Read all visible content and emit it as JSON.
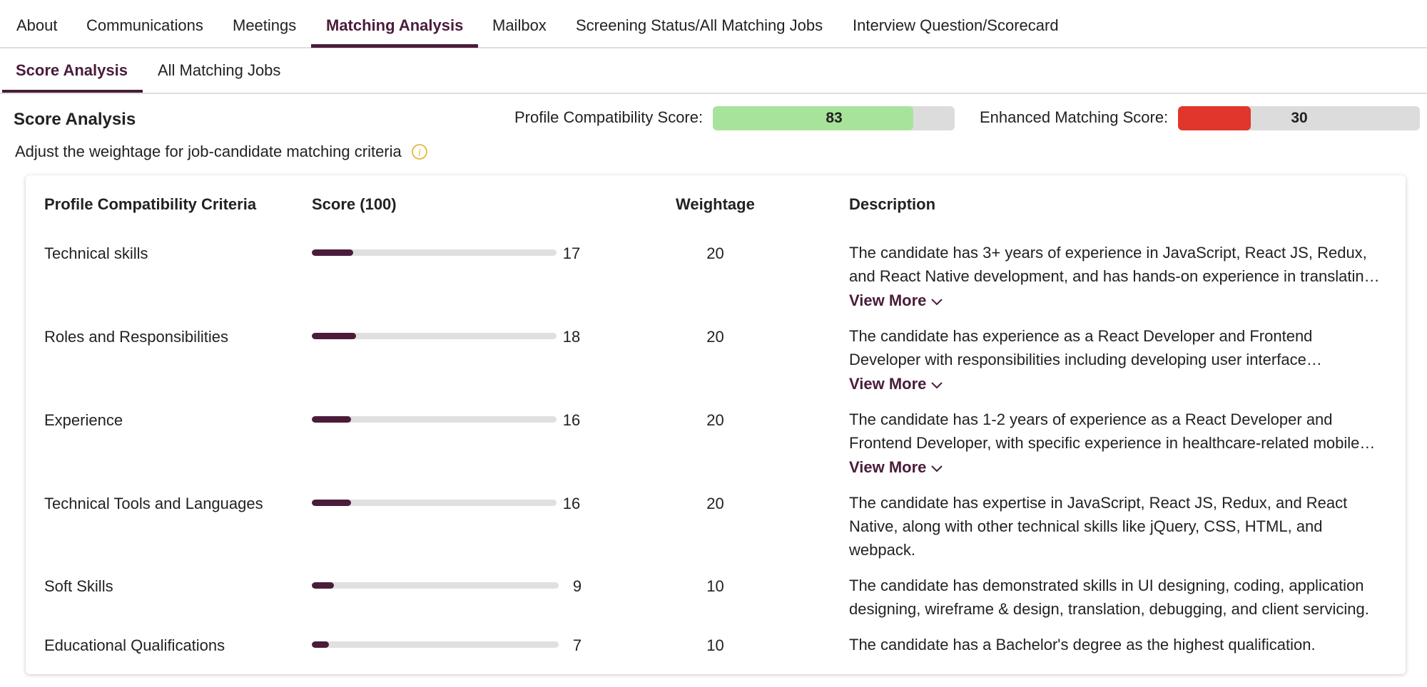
{
  "tabs": {
    "about": "About",
    "communications": "Communications",
    "meetings": "Meetings",
    "matching_analysis": "Matching Analysis",
    "mailbox": "Mailbox",
    "screening_status": "Screening Status/All Matching Jobs",
    "interview": "Interview Question/Scorecard"
  },
  "subtabs": {
    "score_analysis": "Score Analysis",
    "all_matching_jobs": "All Matching Jobs"
  },
  "section_title": "Score Analysis",
  "profile_score": {
    "label": "Profile Compatibility Score:",
    "value": "83",
    "percent": 83,
    "color": "#a8e39b"
  },
  "enhanced_score": {
    "label": "Enhanced Matching Score:",
    "value": "30",
    "percent": 30,
    "color": "#e0362c"
  },
  "subtitle": "Adjust the weightage for job-candidate matching criteria",
  "info_icon": "info-icon",
  "accent_color": "#4a1c3a",
  "table": {
    "headers": {
      "criteria": "Profile Compatibility Criteria",
      "score": "Score (100)",
      "weightage": "Weightage",
      "description": "Description"
    },
    "view_more_label": "View More",
    "rows": [
      {
        "criteria": "Technical skills",
        "score": "17",
        "weightage": "20",
        "description": "The candidate has 3+ years of experience in JavaScript, React JS, Redux, and React Native development, and has hands-on experience in translating designs into code."
      },
      {
        "criteria": "Roles and Responsibilities",
        "score": "18",
        "weightage": "20",
        "description": "The candidate has experience as a React Developer and Frontend Developer with responsibilities including developing user interface components."
      },
      {
        "criteria": "Experience",
        "score": "16",
        "weightage": "20",
        "description": "The candidate has 1-2 years of experience as a React Developer and Frontend Developer, with specific experience in healthcare-related mobile applications."
      },
      {
        "criteria": "Technical Tools and Languages",
        "score": "16",
        "weightage": "20",
        "description": "The candidate has expertise in JavaScript, React JS, Redux, and React Native, along with other technical skills like jQuery, CSS, HTML, and webpack."
      },
      {
        "criteria": "Soft Skills",
        "score": "9",
        "weightage": "10",
        "description": "The candidate has demonstrated skills in UI designing, coding, application designing, wireframe & design, translation, debugging, and client servicing."
      },
      {
        "criteria": "Educational Qualifications",
        "score": "7",
        "weightage": "10",
        "description": "The candidate has a Bachelor's degree as the highest qualification."
      }
    ]
  }
}
